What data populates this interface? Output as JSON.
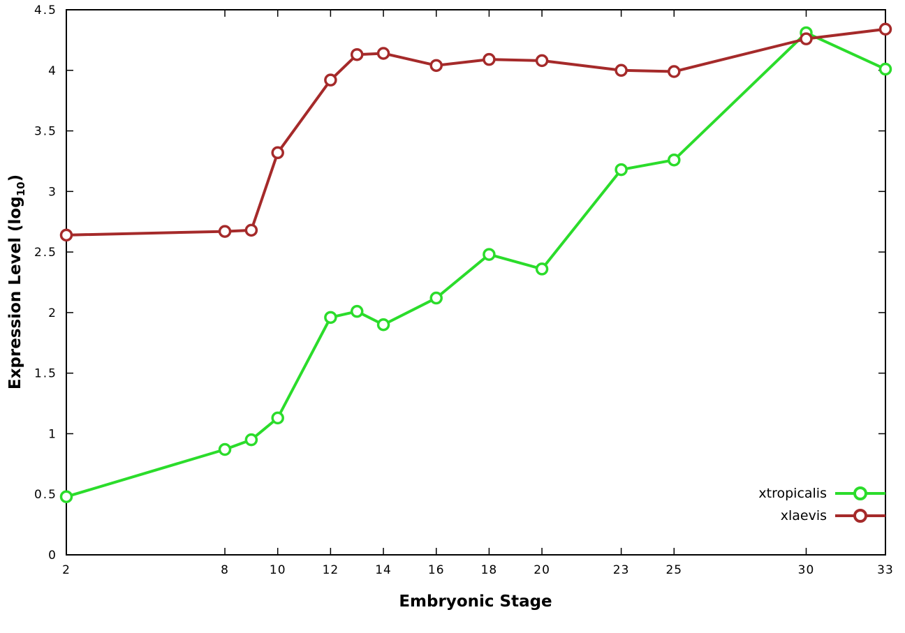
{
  "chart_data": {
    "type": "line",
    "title": "",
    "xlabel": "Embryonic Stage",
    "ylabel_main": "Expression Level (log",
    "ylabel_sub": "10",
    "ylabel_end": ")",
    "xlim": [
      2,
      33
    ],
    "ylim": [
      0,
      4.5
    ],
    "grid": false,
    "legend_position": "bottom-right",
    "x": [
      2,
      8,
      9,
      10,
      12,
      13,
      14,
      16,
      18,
      20,
      23,
      25,
      30,
      33
    ],
    "xtick_values": [
      2,
      8,
      10,
      12,
      14,
      16,
      18,
      20,
      23,
      25,
      30,
      33
    ],
    "xtick_labels": [
      "2",
      "8",
      "10",
      "12",
      "14",
      "16",
      "18",
      "20",
      "23",
      "25",
      "30",
      "33"
    ],
    "ytick_values": [
      0,
      0.5,
      1,
      1.5,
      2,
      2.5,
      3,
      3.5,
      4,
      4.5
    ],
    "ytick_labels": [
      "0",
      "0.5",
      "1",
      "1.5",
      "2",
      "2.5",
      "3",
      "3.5",
      "4",
      "4.5"
    ],
    "series": [
      {
        "name": "xtropicalis",
        "color": "#2bdc2b",
        "values": [
          0.48,
          0.87,
          0.95,
          1.13,
          1.96,
          2.01,
          1.9,
          2.12,
          2.48,
          2.36,
          3.18,
          3.26,
          4.31,
          4.01
        ]
      },
      {
        "name": "xlaevis",
        "color": "#a52a2a",
        "values": [
          2.64,
          2.67,
          2.68,
          3.32,
          3.92,
          4.13,
          4.14,
          4.04,
          4.09,
          4.08,
          4.0,
          3.99,
          4.26,
          4.34
        ]
      }
    ],
    "axis_color": "#000000"
  }
}
